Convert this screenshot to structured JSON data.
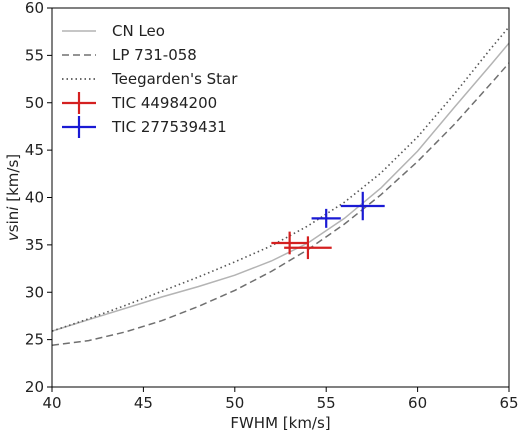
{
  "chart_data": {
    "type": "line",
    "title": "",
    "xlabel": "FWHM [km/s]",
    "ylabel": "vsini [km/s]",
    "xlim": [
      40,
      65
    ],
    "ylim": [
      20,
      60
    ],
    "xticks": [
      40,
      45,
      50,
      55,
      60,
      65
    ],
    "yticks": [
      20,
      25,
      30,
      35,
      40,
      45,
      50,
      55,
      60
    ],
    "xtick_labels": [
      "40",
      "45",
      "50",
      "55",
      "60",
      "65"
    ],
    "ytick_labels": [
      "20",
      "25",
      "30",
      "35",
      "40",
      "45",
      "50",
      "55",
      "60"
    ],
    "grid": false,
    "legend_position": "top-left",
    "series": [
      {
        "name": "CN Leo",
        "style": "solid",
        "color": "#b4b4b4",
        "x": [
          40,
          42,
          44,
          46,
          48,
          50,
          52,
          54,
          56,
          58,
          60,
          62,
          64,
          65
        ],
        "y": [
          25.9,
          27.1,
          28.3,
          29.5,
          30.6,
          31.8,
          33.3,
          35.2,
          37.8,
          41.0,
          44.9,
          49.5,
          54.0,
          56.3
        ]
      },
      {
        "name": "LP 731-058",
        "style": "dashed",
        "color": "#707070",
        "x": [
          40,
          42,
          44,
          46,
          48,
          50,
          52,
          54,
          56,
          58,
          60,
          62,
          64,
          65
        ],
        "y": [
          24.4,
          24.9,
          25.8,
          27.0,
          28.5,
          30.2,
          32.2,
          34.5,
          37.2,
          40.3,
          43.8,
          47.7,
          52.0,
          54.2
        ]
      },
      {
        "name": "Teegarden's Star",
        "style": "dotted",
        "color": "#555555",
        "x": [
          40,
          42,
          44,
          46,
          48,
          50,
          52,
          54,
          56,
          58,
          60,
          62,
          64,
          65
        ],
        "y": [
          25.9,
          27.2,
          28.6,
          30.1,
          31.6,
          33.2,
          34.9,
          37.0,
          39.5,
          42.6,
          46.4,
          50.9,
          55.7,
          58.0
        ]
      }
    ],
    "points": [
      {
        "name": "TIC 44984200",
        "color": "#d42020",
        "markers": [
          {
            "x": 53.0,
            "y": 35.2,
            "xerr": 1.0,
            "yerr": 1.2
          },
          {
            "x": 54.0,
            "y": 34.7,
            "xerr": 1.3,
            "yerr": 1.2
          }
        ]
      },
      {
        "name": "TIC 277539431",
        "color": "#1a1ad4",
        "markers": [
          {
            "x": 55.0,
            "y": 37.8,
            "xerr": 0.8,
            "yerr": 1.0
          },
          {
            "x": 57.0,
            "y": 39.1,
            "xerr": 1.2,
            "yerr": 1.5
          }
        ]
      }
    ]
  }
}
